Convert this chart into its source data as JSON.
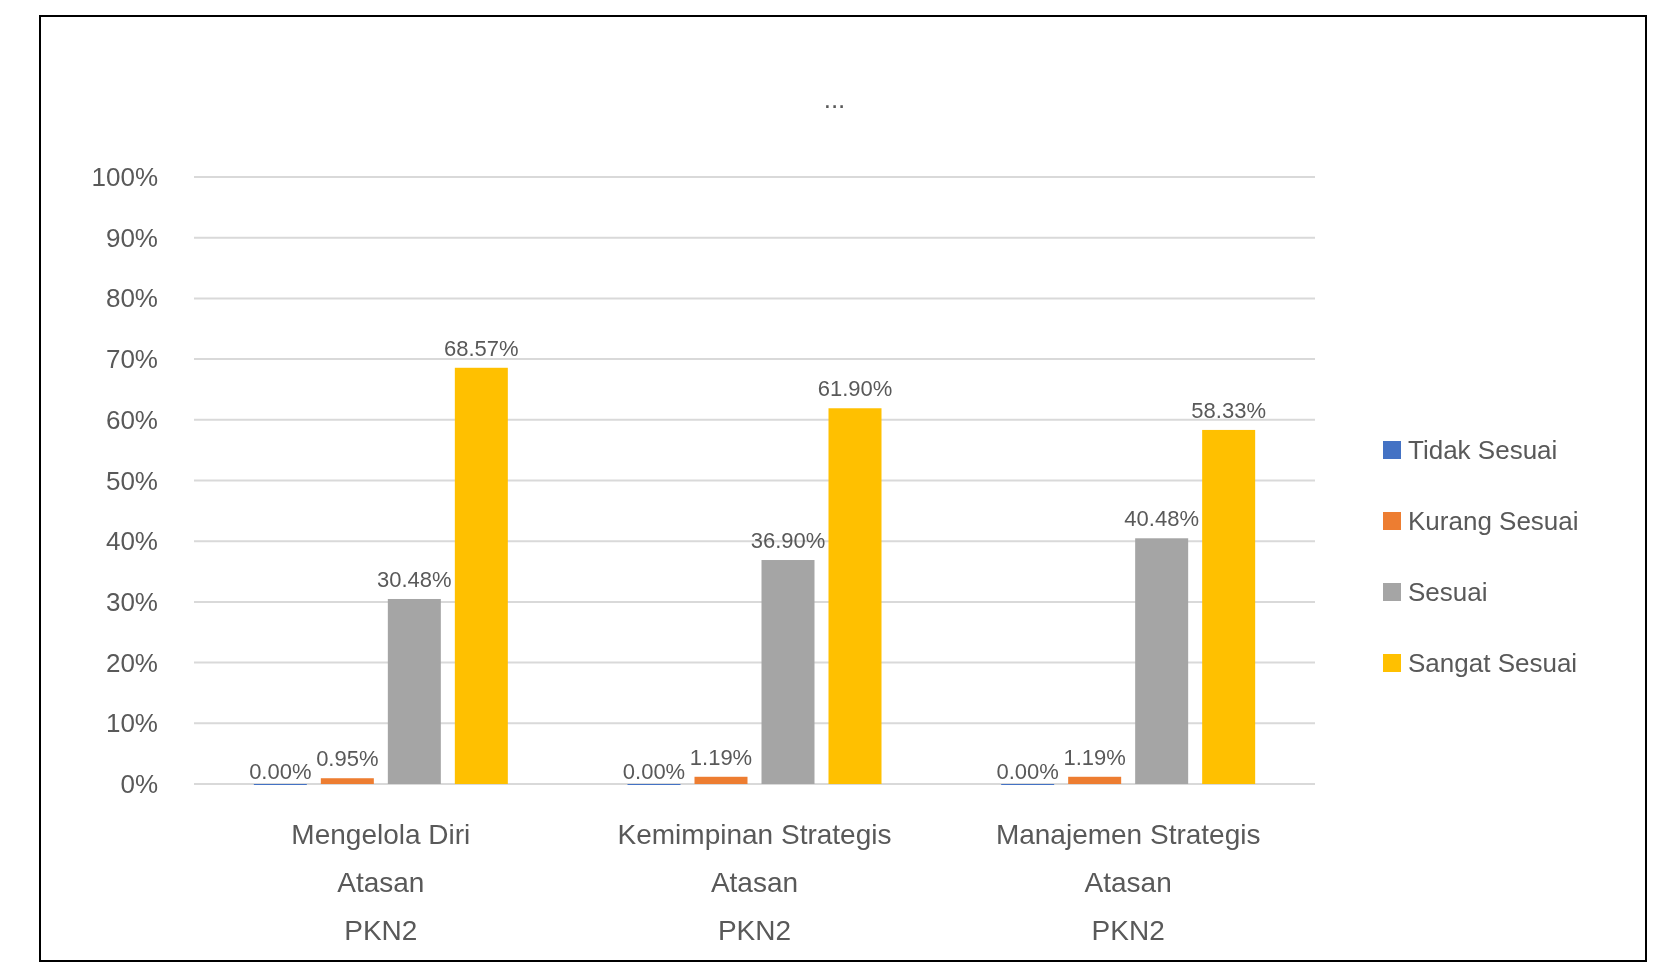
{
  "chart_data": {
    "type": "bar",
    "title": "...",
    "categories": [
      "Mengelola Diri\nAtasan\nPKN2",
      "Kemimpinan Strategis\nAtasan\nPKN2",
      "Manajemen Strategis\nAtasan\nPKN2"
    ],
    "series": [
      {
        "name": "Tidak Sesuai",
        "color": "#4472c4",
        "values": [
          0,
          0,
          0
        ],
        "value_labels": [
          "0.00%",
          "0.00%",
          "0.00%"
        ]
      },
      {
        "name": "Kurang Sesuai",
        "color": "#ed7d31",
        "values": [
          0.95,
          1.19,
          1.19
        ],
        "value_labels": [
          "0.95%",
          "1.19%",
          "1.19%"
        ]
      },
      {
        "name": "Sesuai",
        "color": "#a5a5a5",
        "values": [
          30.48,
          36.9,
          40.48
        ],
        "value_labels": [
          "30.48%",
          "36.90%",
          "40.48%"
        ]
      },
      {
        "name": "Sangat Sesuai",
        "color": "#ffc000",
        "values": [
          68.57,
          61.9,
          58.33
        ],
        "value_labels": [
          "68.57%",
          "61.90%",
          "58.33%"
        ]
      }
    ],
    "ylim": [
      0,
      100
    ],
    "yticks": [
      {
        "value": 0,
        "label": "0%"
      },
      {
        "value": 10,
        "label": "10%"
      },
      {
        "value": 20,
        "label": "20%"
      },
      {
        "value": 30,
        "label": "30%"
      },
      {
        "value": 40,
        "label": "40%"
      },
      {
        "value": 50,
        "label": "50%"
      },
      {
        "value": 60,
        "label": "60%"
      },
      {
        "value": 70,
        "label": "70%"
      },
      {
        "value": 80,
        "label": "80%"
      },
      {
        "value": 90,
        "label": "90%"
      },
      {
        "value": 100,
        "label": "100%"
      }
    ],
    "grid": "y",
    "legend": "right"
  }
}
